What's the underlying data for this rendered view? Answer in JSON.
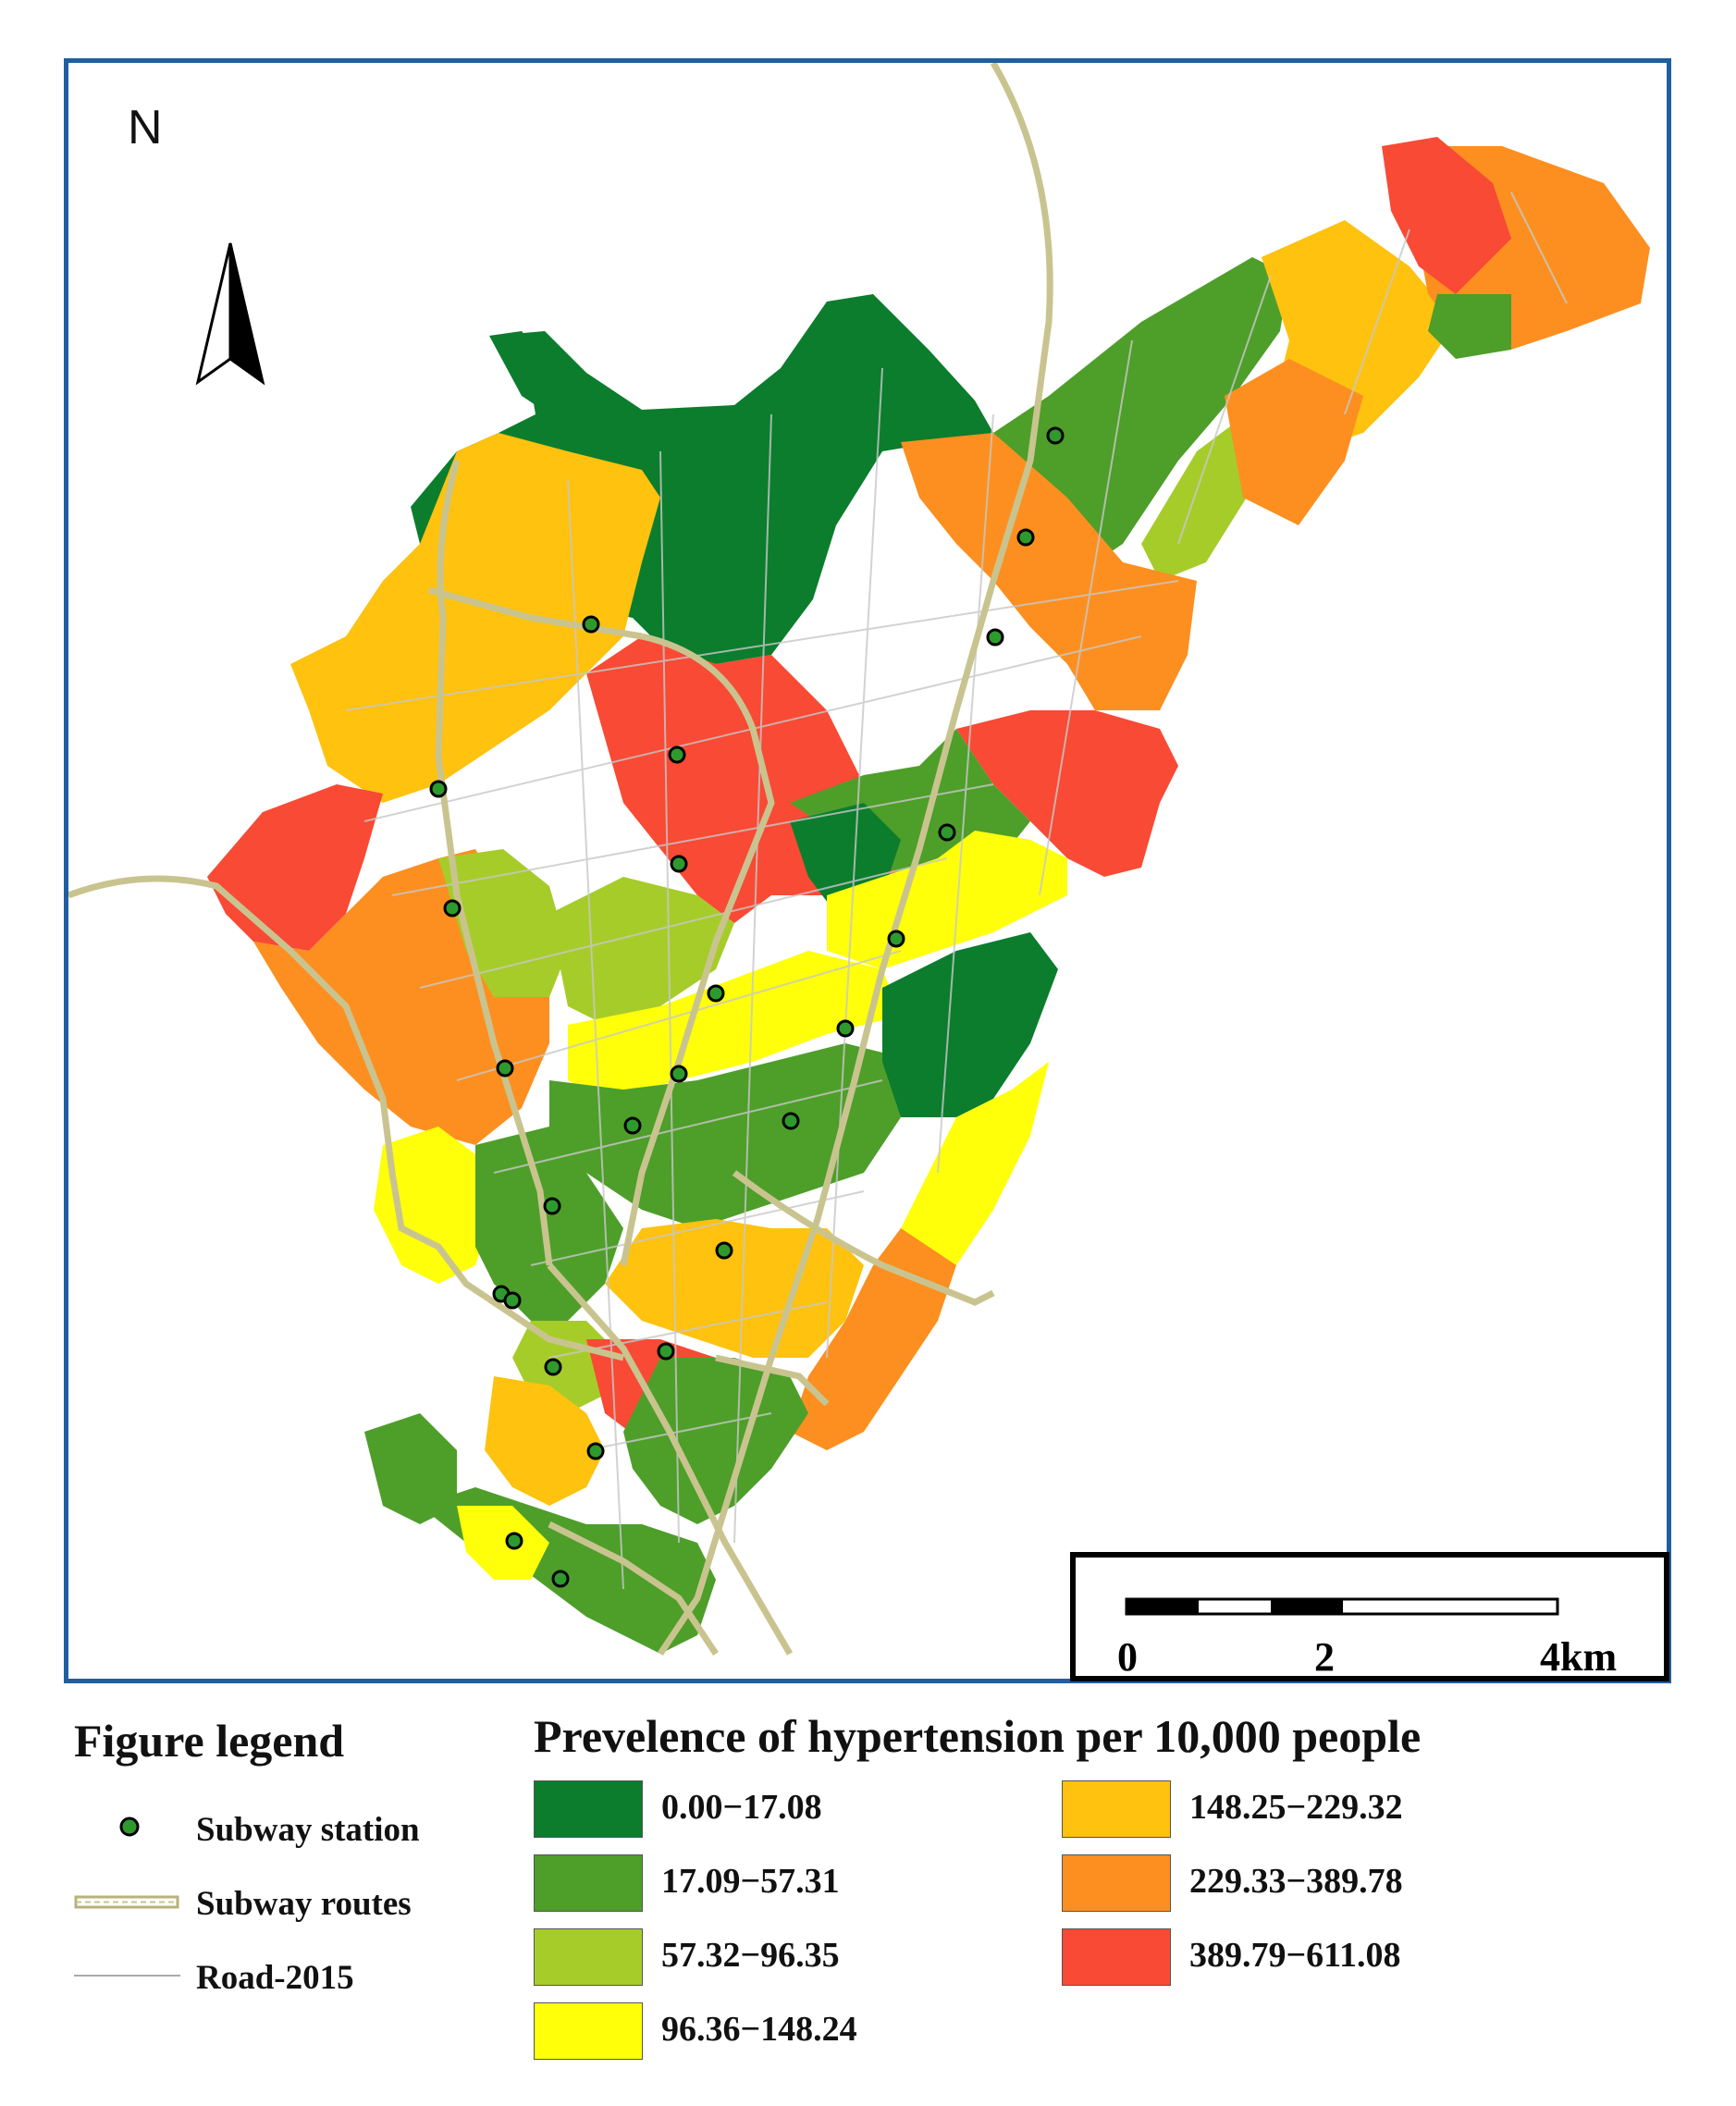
{
  "map": {
    "north_label": "N",
    "scale": {
      "labels": [
        "0",
        "2",
        "4km"
      ]
    }
  },
  "legend": {
    "title": "Figure legend",
    "items": [
      {
        "label": "Subway station",
        "icon": "green-dot-icon"
      },
      {
        "label": "Subway routes",
        "icon": "rail-line-icon"
      },
      {
        "label": "Road-2015",
        "icon": "road-line-icon"
      }
    ]
  },
  "prevalence": {
    "title": "Prevelence of hypertension per 10,000   people",
    "classes": [
      {
        "label": "0.00−17.08",
        "color": "#0b7d2d"
      },
      {
        "label": "17.09−57.31",
        "color": "#4e9e2a"
      },
      {
        "label": "57.32−96.35",
        "color": "#a6cc2a"
      },
      {
        "label": "96.36−148.24",
        "color": "#ffff0a"
      },
      {
        "label": "148.25−229.32",
        "color": "#fec20f"
      },
      {
        "label": "229.33−389.78",
        "color": "#fc8f20"
      },
      {
        "label": "389.79−611.08",
        "color": "#f84a34"
      }
    ]
  },
  "colors": {
    "frame": "#1f5f9f",
    "road": "#c8c8c8",
    "rail": "#c9c48f",
    "station": "#2e9a2e"
  }
}
